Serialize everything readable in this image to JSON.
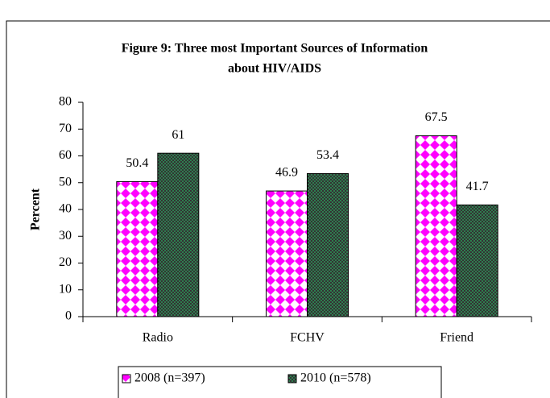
{
  "chart_data": {
    "type": "bar",
    "title": [
      "Figure 9: Three most Important Sources of Information",
      "about HIV/AIDS"
    ],
    "y_label": "Percent",
    "categories": [
      "Radio",
      "FCHV",
      "Friend"
    ],
    "series": [
      {
        "name": "2008 (n=397)",
        "color": "#ff00ff",
        "values": [
          50.4,
          46.9,
          67.5
        ]
      },
      {
        "name": "2010 (n=578)",
        "color": "#2e7d4f",
        "values": [
          61,
          53.4,
          41.7
        ]
      }
    ],
    "ylim": [
      0,
      80
    ],
    "yticks": [
      0,
      10,
      20,
      30,
      40,
      50,
      60,
      70,
      80
    ]
  }
}
